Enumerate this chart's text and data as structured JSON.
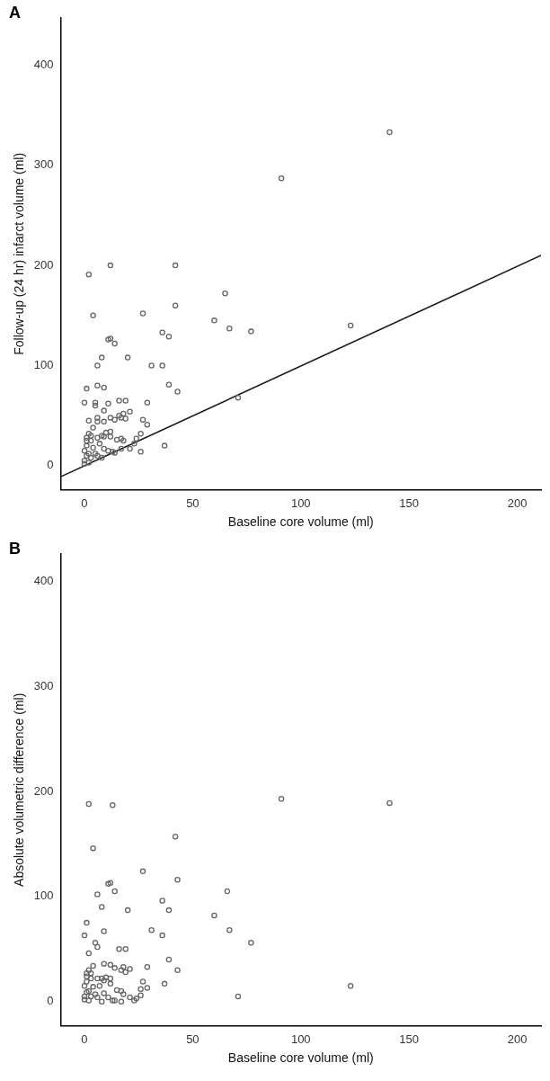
{
  "chart_data": [
    {
      "type": "scatter",
      "annotations": [
        "A"
      ],
      "xlabel": "Baseline core volume (ml)",
      "ylabel": "Follow-up (24 hr) infarct volume (ml)",
      "xlim": [
        -11,
        211
      ],
      "ylim": [
        -24,
        447
      ],
      "xticks": [
        0,
        50,
        100,
        150,
        200
      ],
      "yticks": [
        0,
        100,
        200,
        300,
        400
      ],
      "grid": false,
      "legend": false,
      "marker": "circle",
      "series": [
        {
          "color": "#666666",
          "x": [
            141,
            91,
            12,
            42,
            2,
            65,
            42,
            27,
            4,
            60,
            123,
            67,
            77,
            36,
            39,
            11,
            12,
            14,
            8,
            20,
            6,
            31,
            36,
            6,
            9,
            39,
            43,
            71,
            0,
            11,
            16,
            19,
            29,
            1,
            5,
            5,
            9,
            6,
            12,
            6,
            9,
            2,
            14,
            16,
            17,
            18,
            21,
            27,
            29,
            19,
            4,
            2,
            1,
            8,
            9,
            10,
            12,
            12,
            15,
            17,
            24,
            26,
            1,
            3,
            7,
            9,
            13,
            17,
            21,
            23,
            18,
            37,
            26,
            1,
            0,
            1,
            0,
            3,
            2,
            5,
            6,
            8,
            11,
            14,
            0,
            2,
            4,
            6,
            3
          ],
          "values": [
            333,
            287,
            200,
            200,
            191,
            172,
            160,
            152,
            150,
            145,
            140,
            137,
            134,
            133,
            129,
            126,
            127,
            122,
            108,
            108,
            100,
            100,
            100,
            80,
            78,
            81,
            74,
            68,
            63,
            62,
            65,
            65,
            63,
            77,
            63,
            60,
            55,
            48,
            48,
            44,
            44,
            45,
            46,
            50,
            48,
            52,
            54,
            46,
            41,
            47,
            38,
            32,
            28,
            30,
            29,
            33,
            34,
            29,
            26,
            27,
            27,
            32,
            25,
            25,
            22,
            17,
            14,
            17,
            17,
            22,
            25,
            20,
            14,
            20,
            15,
            10,
            5,
            8,
            12,
            12,
            10,
            8,
            15,
            13,
            2,
            3,
            18,
            28,
            30
          ]
        },
        {
          "type": "line",
          "color": "#1a1a1a",
          "marker": "none",
          "x": [
            -11,
            211
          ],
          "values": [
            -11,
            210
          ]
        }
      ]
    },
    {
      "type": "scatter",
      "annotations": [
        "B"
      ],
      "xlabel": "Baseline core volume (ml)",
      "ylabel": "Absolute volumetric difference (ml)",
      "xlim": [
        -11,
        211
      ],
      "ylim": [
        -23,
        426
      ],
      "xticks": [
        0,
        50,
        100,
        150,
        200
      ],
      "yticks": [
        0,
        100,
        200,
        300,
        400
      ],
      "grid": false,
      "legend": false,
      "marker": "circle",
      "series": [
        {
          "color": "#666666",
          "x": [
            2,
            13,
            91,
            141,
            4,
            42,
            27,
            43,
            11,
            12,
            14,
            66,
            6,
            8,
            20,
            1,
            36,
            39,
            60,
            67,
            77,
            0,
            9,
            31,
            36,
            43,
            39,
            71,
            123,
            2,
            16,
            19,
            29,
            5,
            6,
            12,
            9,
            14,
            17,
            18,
            21,
            27,
            29,
            19,
            4,
            2,
            1,
            8,
            9,
            10,
            12,
            12,
            15,
            17,
            24,
            26,
            1,
            3,
            7,
            9,
            13,
            17,
            21,
            23,
            18,
            37,
            26,
            1,
            0,
            1,
            0,
            3,
            2,
            5,
            6,
            8,
            11,
            14,
            0,
            2,
            4,
            6,
            3
          ],
          "values": [
            188,
            187,
            193,
            189,
            146,
            157,
            124,
            116,
            112,
            113,
            105,
            105,
            102,
            90,
            87,
            75,
            96,
            87,
            82,
            68,
            56,
            63,
            67,
            68,
            63,
            30,
            40,
            5,
            15,
            46,
            50,
            50,
            33,
            56,
            52,
            35,
            36,
            32,
            30,
            33,
            31,
            19,
            13,
            28,
            34,
            30,
            27,
            22,
            20,
            23,
            22,
            17,
            11,
            10,
            3,
            6,
            24,
            22,
            15,
            8,
            1,
            0,
            4,
            1,
            7,
            17,
            12,
            19,
            15,
            9,
            5,
            5,
            10,
            7,
            4,
            0,
            4,
            1,
            2,
            1,
            14,
            22,
            27
          ]
        }
      ]
    }
  ]
}
